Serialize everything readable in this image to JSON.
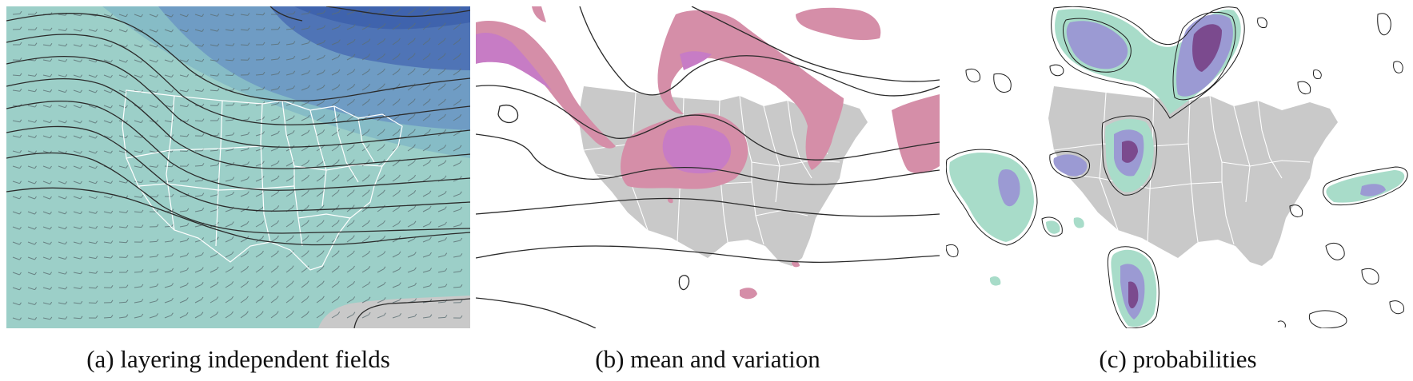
{
  "figure": {
    "panels": [
      {
        "id": "a",
        "caption": "(a) layering independent fields",
        "layers": [
          "filled-contours",
          "wind-barbs",
          "contour-lines",
          "us-map"
        ]
      },
      {
        "id": "b",
        "caption": "(b) mean and variation",
        "layers": [
          "variation-fill",
          "mean-contour-lines",
          "us-map"
        ]
      },
      {
        "id": "c",
        "caption": "(c) probabilities",
        "layers": [
          "probability-fill",
          "probability-contour-lines",
          "us-map"
        ]
      }
    ]
  },
  "colors": {
    "teal_light": "#9ccfc8",
    "teal_mid": "#86bcc6",
    "blue_mid": "#6f9cc4",
    "blue_dark": "#4f74b6",
    "gray_land": "#c9c9c9",
    "pink": "#d58ea8",
    "magenta": "#c77cc5",
    "green_prob": "#a8dcc9",
    "lavender": "#9b9ad3",
    "purple_dark": "#7b4a8e"
  }
}
